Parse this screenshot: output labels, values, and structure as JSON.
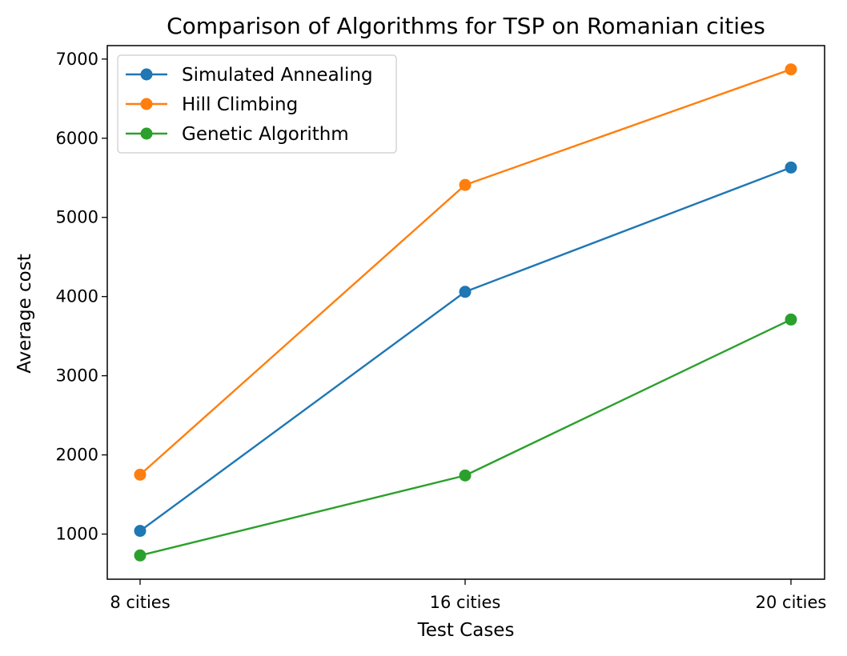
{
  "chart_data": {
    "type": "line",
    "title": "Comparison of Algorithms for TSP on Romanian cities",
    "xlabel": "Test Cases",
    "ylabel": "Average cost",
    "categories": [
      "8 cities",
      "16 cities",
      "20 cities"
    ],
    "ylim": [
      430,
      7170
    ],
    "yticks": [
      1000,
      2000,
      3000,
      4000,
      5000,
      6000,
      7000
    ],
    "grid": false,
    "legend_position": "top-left",
    "markers": true,
    "series": [
      {
        "name": "Simulated Annealing",
        "color": "#1f77b4",
        "values": [
          1040,
          4060,
          5630
        ]
      },
      {
        "name": "Hill Climbing",
        "color": "#ff7f0e",
        "values": [
          1750,
          5410,
          6870
        ]
      },
      {
        "name": "Genetic Algorithm",
        "color": "#2ca02c",
        "values": [
          730,
          1740,
          3710
        ]
      }
    ]
  }
}
